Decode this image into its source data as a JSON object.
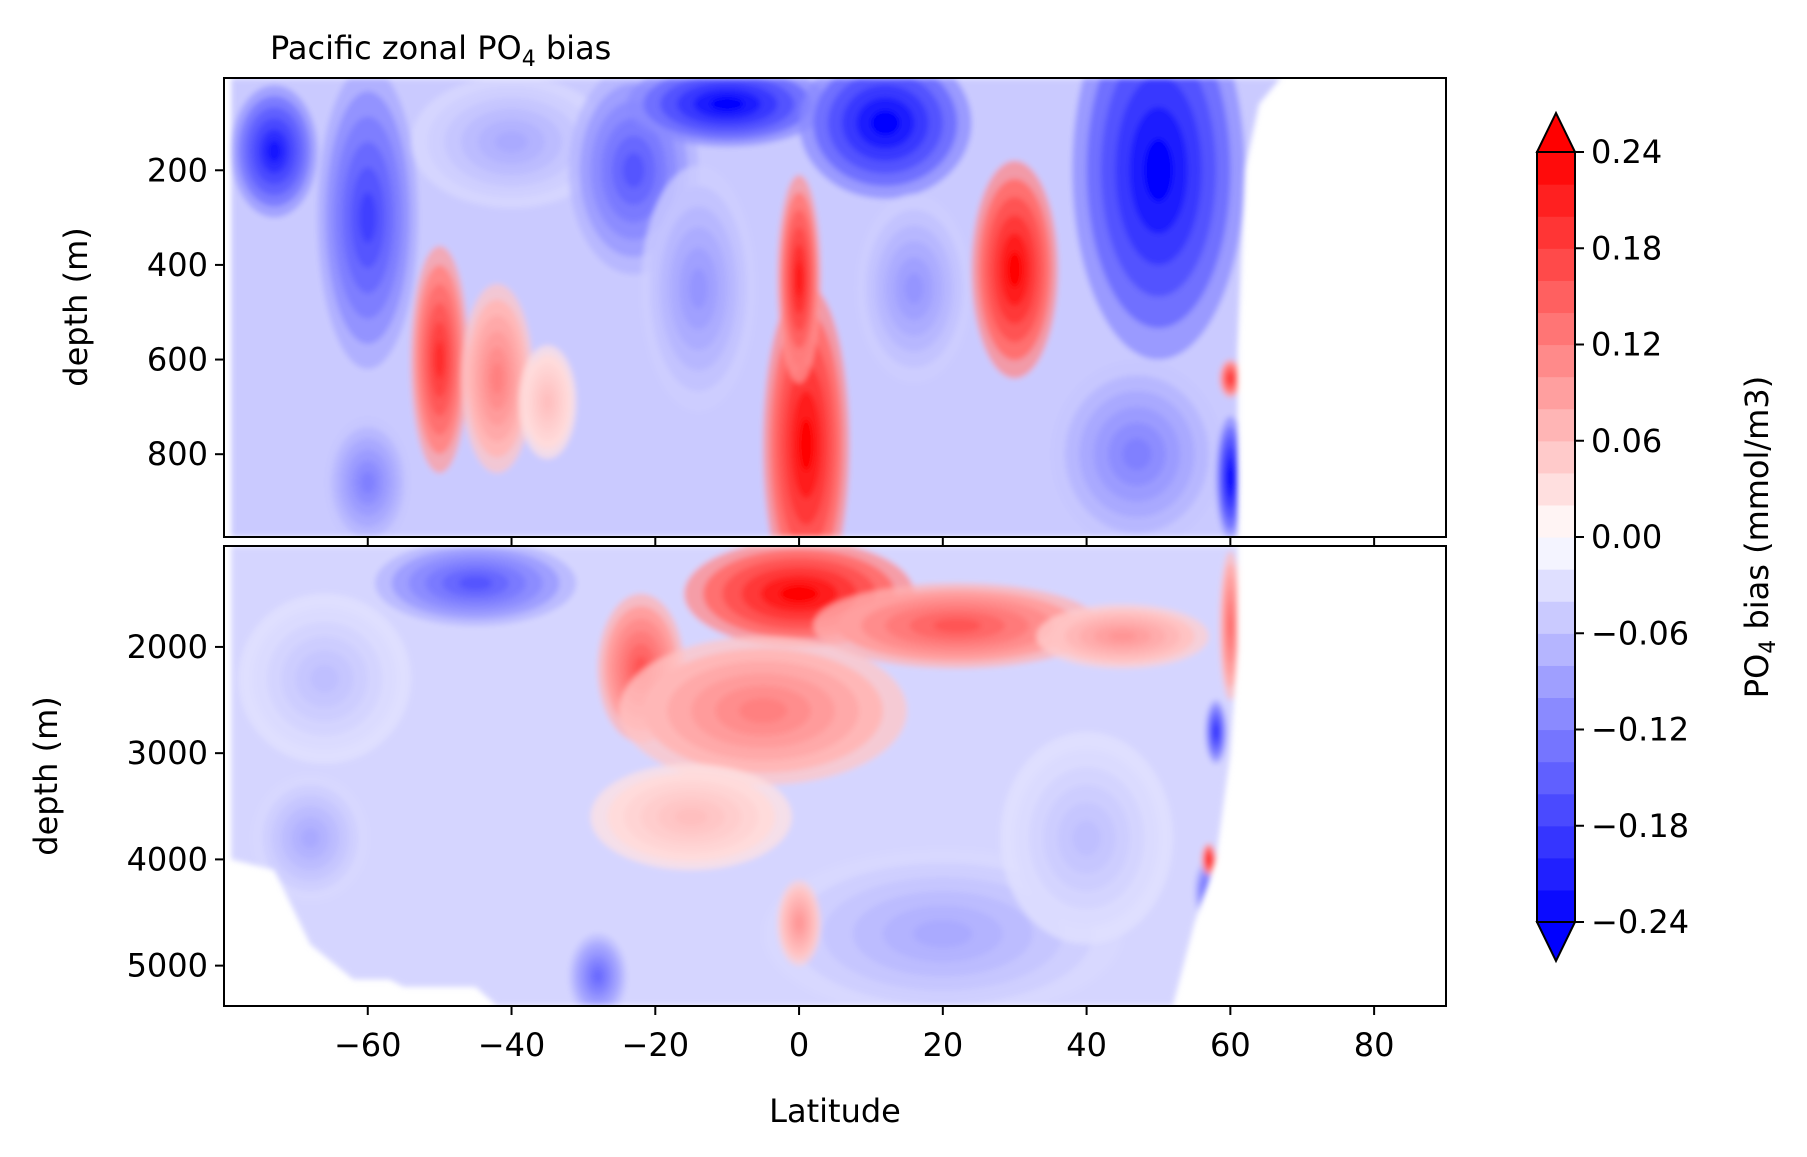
{
  "chart_data": {
    "type": "heatmap",
    "title_parts": [
      "Pacific zonal PO",
      "4",
      " bias"
    ],
    "xlabel": "Latitude",
    "x_ticks": [
      -60,
      -40,
      -20,
      0,
      20,
      40,
      60,
      80
    ],
    "x_tick_labels": [
      "−60",
      "−40",
      "−20",
      "0",
      "20",
      "40",
      "60",
      "80"
    ],
    "xlim": [
      -80,
      90
    ],
    "panels": [
      {
        "name": "upper",
        "ylabel": "depth (m)",
        "ylim": [
          975,
          5
        ],
        "y_ticks": [
          200,
          400,
          600,
          800
        ],
        "y_tick_labels": [
          "200",
          "400",
          "600",
          "800"
        ],
        "ocean_extent": [
          [
            -79,
            0
          ],
          [
            -79,
            975
          ],
          [
            61,
            975
          ],
          [
            61,
            580
          ],
          [
            62,
            200
          ],
          [
            64,
            60
          ],
          [
            67,
            0
          ]
        ],
        "features": [
          {
            "lat": -73,
            "depth": 160,
            "rx": 6,
            "ry": 140,
            "value": -0.22
          },
          {
            "lat": -60,
            "depth": 300,
            "rx": 7,
            "ry": 320,
            "value": -0.18
          },
          {
            "lat": -40,
            "depth": 140,
            "rx": 14,
            "ry": 140,
            "value": -0.08
          },
          {
            "lat": -23,
            "depth": 200,
            "rx": 9,
            "ry": 220,
            "value": -0.16
          },
          {
            "lat": -10,
            "depth": 60,
            "rx": 14,
            "ry": 90,
            "value": -0.24
          },
          {
            "lat": -14,
            "depth": 450,
            "rx": 8,
            "ry": 260,
            "value": -0.1
          },
          {
            "lat": 12,
            "depth": 100,
            "rx": 12,
            "ry": 160,
            "value": -0.24
          },
          {
            "lat": 16,
            "depth": 450,
            "rx": 8,
            "ry": 200,
            "value": -0.1
          },
          {
            "lat": 50,
            "depth": 200,
            "rx": 12,
            "ry": 400,
            "value": -0.24
          },
          {
            "lat": 47,
            "depth": 800,
            "rx": 12,
            "ry": 200,
            "value": -0.12
          },
          {
            "lat": 60,
            "depth": 850,
            "rx": 2,
            "ry": 130,
            "value": -0.24
          },
          {
            "lat": 60,
            "depth": 640,
            "rx": 1.5,
            "ry": 40,
            "value": 0.2
          },
          {
            "lat": -60,
            "depth": 860,
            "rx": 6,
            "ry": 140,
            "value": -0.12
          },
          {
            "lat": -50,
            "depth": 600,
            "rx": 4,
            "ry": 240,
            "value": 0.2
          },
          {
            "lat": -42,
            "depth": 640,
            "rx": 5,
            "ry": 200,
            "value": 0.12
          },
          {
            "lat": -35,
            "depth": 690,
            "rx": 4,
            "ry": 120,
            "value": 0.06
          },
          {
            "lat": 1,
            "depth": 780,
            "rx": 6,
            "ry": 340,
            "value": 0.24
          },
          {
            "lat": 0,
            "depth": 430,
            "rx": 3,
            "ry": 220,
            "value": 0.22
          },
          {
            "lat": 30,
            "depth": 410,
            "rx": 6,
            "ry": 230,
            "value": 0.24
          }
        ]
      },
      {
        "name": "lower",
        "ylabel": "depth (m)",
        "ylim": [
          5380,
          1050
        ],
        "y_ticks": [
          2000,
          3000,
          4000,
          5000
        ],
        "y_tick_labels": [
          "2000",
          "3000",
          "4000",
          "5000"
        ],
        "ocean_extent": [
          [
            -79,
            1050
          ],
          [
            -79,
            4000
          ],
          [
            -73,
            4100
          ],
          [
            -68,
            4800
          ],
          [
            -62,
            5130
          ],
          [
            -57,
            5130
          ],
          [
            -55,
            5200
          ],
          [
            -45,
            5200
          ],
          [
            -42,
            5380
          ],
          [
            52,
            5380
          ],
          [
            55,
            4600
          ],
          [
            58,
            4000
          ],
          [
            60,
            3000
          ],
          [
            61,
            2000
          ],
          [
            61,
            1050
          ]
        ],
        "features": [
          {
            "lat": -45,
            "depth": 1400,
            "rx": 14,
            "ry": 400,
            "value": -0.16
          },
          {
            "lat": -66,
            "depth": 2300,
            "rx": 12,
            "ry": 800,
            "value": -0.06
          },
          {
            "lat": -68,
            "depth": 3800,
            "rx": 8,
            "ry": 600,
            "value": -0.08
          },
          {
            "lat": -28,
            "depth": 5100,
            "rx": 4,
            "ry": 400,
            "value": -0.14
          },
          {
            "lat": 20,
            "depth": 4700,
            "rx": 25,
            "ry": 800,
            "value": -0.08
          },
          {
            "lat": 40,
            "depth": 3800,
            "rx": 12,
            "ry": 1000,
            "value": -0.06
          },
          {
            "lat": 58,
            "depth": 2800,
            "rx": 1.5,
            "ry": 300,
            "value": -0.2
          },
          {
            "lat": 57,
            "depth": 4300,
            "rx": 2,
            "ry": 300,
            "value": -0.16
          },
          {
            "lat": 0,
            "depth": 1500,
            "rx": 16,
            "ry": 500,
            "value": 0.24
          },
          {
            "lat": 22,
            "depth": 1800,
            "rx": 20,
            "ry": 400,
            "value": 0.16
          },
          {
            "lat": 45,
            "depth": 1900,
            "rx": 12,
            "ry": 300,
            "value": 0.1
          },
          {
            "lat": -22,
            "depth": 2200,
            "rx": 6,
            "ry": 700,
            "value": 0.16
          },
          {
            "lat": -5,
            "depth": 2600,
            "rx": 20,
            "ry": 700,
            "value": 0.12
          },
          {
            "lat": -15,
            "depth": 3600,
            "rx": 14,
            "ry": 500,
            "value": 0.06
          },
          {
            "lat": 0,
            "depth": 4600,
            "rx": 3,
            "ry": 400,
            "value": 0.1
          },
          {
            "lat": 60,
            "depth": 1800,
            "rx": 1.5,
            "ry": 700,
            "value": 0.14
          },
          {
            "lat": 57,
            "depth": 4000,
            "rx": 1,
            "ry": 150,
            "value": 0.22
          }
        ]
      }
    ],
    "colorbar": {
      "label_parts": [
        "PO",
        "4",
        " bias (mmol/m3)"
      ],
      "levels": [
        -0.24,
        0.24
      ],
      "n_bands": 24,
      "ticks": [
        -0.24,
        -0.18,
        -0.12,
        -0.06,
        0.0,
        0.06,
        0.12,
        0.18,
        0.24
      ],
      "tick_labels": [
        "−0.24",
        "−0.18",
        "−0.12",
        "−0.06",
        "0.00",
        "0.06",
        "0.12",
        "0.18",
        "0.24"
      ],
      "extend": "both"
    },
    "colormap": {
      "low": "#0000ff",
      "mid": "#ffffff",
      "high": "#ff0000"
    }
  }
}
